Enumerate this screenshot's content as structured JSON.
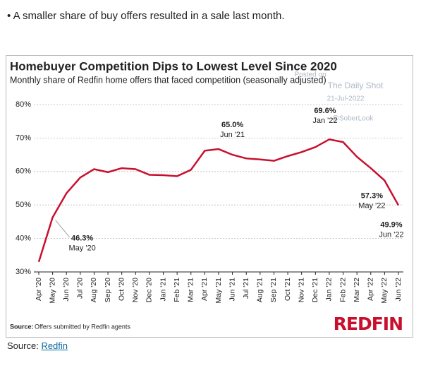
{
  "intro": "A smaller share of buy offers resulted in a sale last month.",
  "source_prefix": "Source:",
  "source_link": "Redfin",
  "chart_data": {
    "type": "line",
    "title": "Homebuyer Competition Dips to Lowest Level Since 2020",
    "subtitle": "Monthly share of Redfin home offers that faced competition (seasonally adjusted)",
    "categories": [
      "Apr '20",
      "May '20",
      "Jun '20",
      "Jul '20",
      "Aug '20",
      "Sep '20",
      "Oct '20",
      "Nov '20",
      "Dec '20",
      "Jan '21",
      "Feb '21",
      "Mar '21",
      "Apr '21",
      "May '21",
      "Jun '21",
      "Jul '21",
      "Aug '21",
      "Sep '21",
      "Oct '21",
      "Nov '21",
      "Dec '21",
      "Jan '22",
      "Feb '22",
      "Mar '22",
      "Apr '22",
      "May '22",
      "Jun '22"
    ],
    "values": [
      33,
      46.3,
      53.5,
      58.2,
      60.7,
      59.8,
      61,
      60.7,
      59,
      58.9,
      58.6,
      60.5,
      66.2,
      66.7,
      65.0,
      63.9,
      63.6,
      63.2,
      64.6,
      65.8,
      67.3,
      69.6,
      68.8,
      64.4,
      61,
      57.3,
      49.9
    ],
    "value_labels": [
      null,
      "46.3%",
      null,
      null,
      null,
      null,
      null,
      null,
      null,
      null,
      null,
      null,
      null,
      null,
      "65.0%",
      null,
      null,
      null,
      null,
      null,
      null,
      "69.6%",
      null,
      null,
      null,
      "57.3%",
      "49.9%"
    ],
    "color": "#c8102e",
    "ylim": [
      30,
      80
    ],
    "yticks": [
      {
        "value": 30,
        "label": "30%"
      },
      {
        "value": 40,
        "label": "40%"
      },
      {
        "value": 50,
        "label": "50%"
      },
      {
        "value": 60,
        "label": "60%"
      },
      {
        "value": 70,
        "label": "70%"
      },
      {
        "value": 80,
        "label": "80%"
      }
    ],
    "grid": true,
    "source_label": "Source:",
    "source_text": "Offers submitted by Redfin agents",
    "logo": "REDFIN",
    "watermark": [
      "Posted on",
      "The Daily Shot",
      "21-Jul-2022",
      "@SoberLook"
    ]
  }
}
